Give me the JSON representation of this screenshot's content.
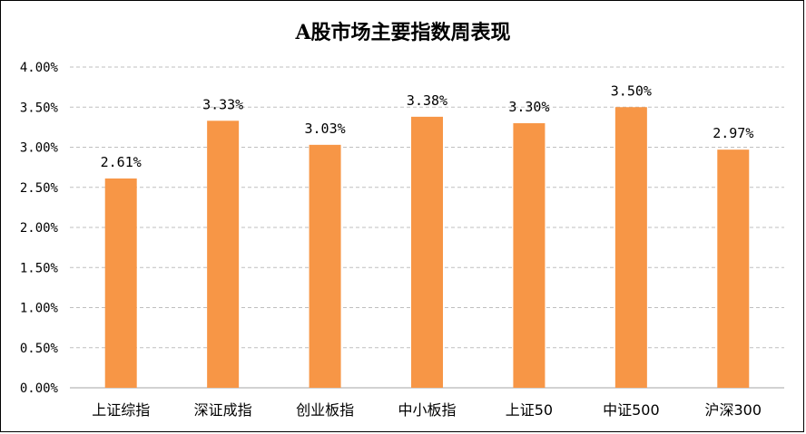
{
  "chart_data": {
    "type": "bar",
    "title": "A股市场主要指数周表现",
    "categories": [
      "上证综指",
      "深证成指",
      "创业板指",
      "中小板指",
      "上证50",
      "中证500",
      "沪深300"
    ],
    "values": [
      2.61,
      3.33,
      3.03,
      3.38,
      3.3,
      3.5,
      2.97
    ],
    "value_labels": [
      "2.61%",
      "3.33%",
      "3.03%",
      "3.38%",
      "3.30%",
      "3.50%",
      "2.97%"
    ],
    "y_ticks": [
      0.0,
      0.5,
      1.0,
      1.5,
      2.0,
      2.5,
      3.0,
      3.5,
      4.0
    ],
    "y_tick_labels": [
      "0.00%",
      "0.50%",
      "1.00%",
      "1.50%",
      "2.00%",
      "2.50%",
      "3.00%",
      "3.50%",
      "4.00%"
    ],
    "ylim": [
      0,
      4
    ],
    "xlabel": "",
    "ylabel": "",
    "grid": true,
    "bar_color": "#F79646"
  }
}
